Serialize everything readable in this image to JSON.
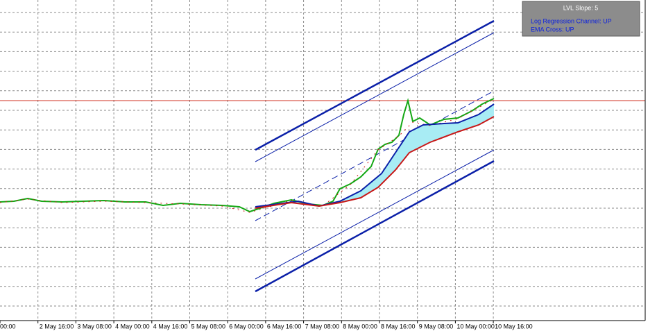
{
  "info_box": {
    "title": "LVL Slope: 5",
    "lines": [
      "Log Regression Channel: UP",
      "EMA Cross: UP"
    ]
  },
  "time_axis": {
    "labels": [
      "00:00",
      "2 May 16:00",
      "3 May 08:00",
      "4 May 00:00",
      "4 May 16:00",
      "5 May 08:00",
      "6 May 00:00",
      "6 May 16:00",
      "7 May 08:00",
      "8 May 00:00",
      "8 May 16:00",
      "9 May 08:00",
      "10 May 00:00",
      "10 May 16:00"
    ]
  }
}
